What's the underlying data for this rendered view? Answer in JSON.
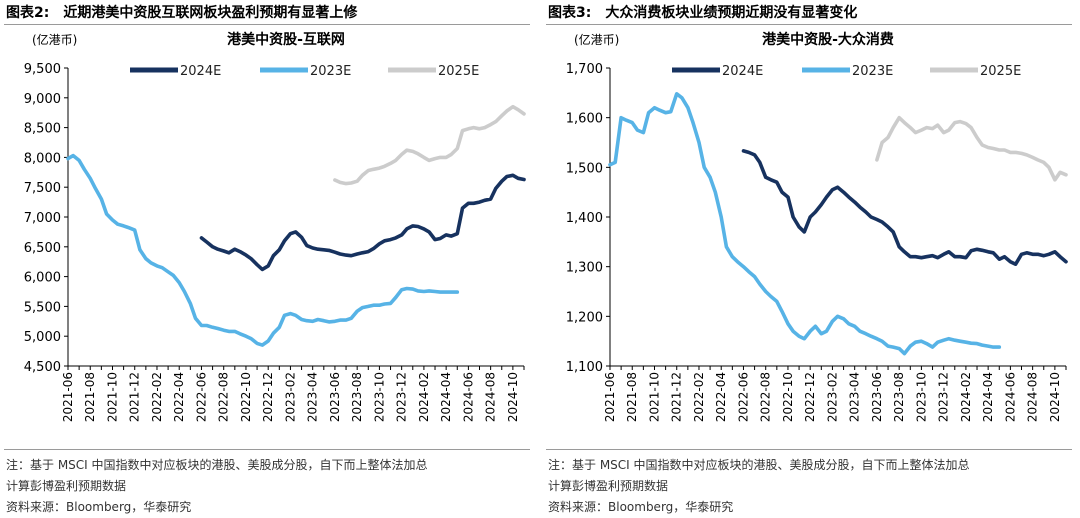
{
  "panels": [
    {
      "figure_title": "图表2:",
      "figure_subtitle": "近期港美中资股互联网板块盈利预期有显著上修",
      "note_line1": "注：基于 MSCI 中国指数中对应板块的港股、美股成分股，自下而上整体法加总",
      "note_line2": "计算彭博盈利预期数据",
      "source": "资料来源：Bloomberg，华泰研究"
    },
    {
      "figure_title": "图表3:",
      "figure_subtitle": "大众消费板块业绩预期近期没有显著变化",
      "note_line1": "注：基于 MSCI 中国指数中对应板块的港股、美股成分股，自下而上整体法加总",
      "note_line2": "计算彭博盈利预期数据",
      "source": "资料来源：Bloomberg，华泰研究"
    }
  ],
  "chart_data": [
    {
      "type": "line",
      "title": "港美中资股-互联网",
      "ylabel": "(亿港币)",
      "ylim": [
        4500,
        9500
      ],
      "yticks": [
        4500,
        5000,
        5500,
        6000,
        6500,
        7000,
        7500,
        8000,
        8500,
        9000,
        9500
      ],
      "xlim": [
        "2021-06",
        "2024-11"
      ],
      "xticks": [
        "2021-06",
        "2021-08",
        "2021-10",
        "2021-12",
        "2022-02",
        "2022-04",
        "2022-06",
        "2022-08",
        "2022-10",
        "2022-12",
        "2023-02",
        "2023-04",
        "2023-06",
        "2023-08",
        "2023-10",
        "2023-12",
        "2024-02",
        "2024-04",
        "2024-06",
        "2024-08",
        "2024-10"
      ],
      "grid": false,
      "legend_position": "top",
      "series": [
        {
          "name": "2024E",
          "color": "#17325f",
          "x": [
            "2022-06-01",
            "2022-06-15",
            "2022-07-01",
            "2022-07-15",
            "2022-08-01",
            "2022-08-15",
            "2022-09-01",
            "2022-09-15",
            "2022-10-01",
            "2022-10-15",
            "2022-11-01",
            "2022-11-15",
            "2022-12-01",
            "2022-12-15",
            "2023-01-01",
            "2023-01-15",
            "2023-02-01",
            "2023-02-15",
            "2023-03-01",
            "2023-03-15",
            "2023-04-01",
            "2023-04-15",
            "2023-05-01",
            "2023-05-15",
            "2023-06-01",
            "2023-06-15",
            "2023-07-01",
            "2023-07-15",
            "2023-08-01",
            "2023-08-15",
            "2023-09-01",
            "2023-09-15",
            "2023-10-01",
            "2023-10-15",
            "2023-11-01",
            "2023-11-15",
            "2023-12-01",
            "2023-12-15",
            "2024-01-01",
            "2024-01-15",
            "2024-02-01",
            "2024-02-15",
            "2024-03-01",
            "2024-03-15",
            "2024-04-01",
            "2024-04-15",
            "2024-05-01",
            "2024-05-15",
            "2024-06-01",
            "2024-06-15",
            "2024-07-01",
            "2024-07-15",
            "2024-08-01",
            "2024-08-15",
            "2024-09-01",
            "2024-09-15",
            "2024-10-01",
            "2024-10-15",
            "2024-11-01"
          ],
          "values": [
            6650,
            6580,
            6500,
            6460,
            6430,
            6400,
            6460,
            6420,
            6360,
            6300,
            6200,
            6120,
            6180,
            6350,
            6450,
            6600,
            6720,
            6750,
            6660,
            6520,
            6480,
            6460,
            6450,
            6440,
            6410,
            6380,
            6360,
            6350,
            6380,
            6400,
            6420,
            6470,
            6550,
            6600,
            6620,
            6650,
            6700,
            6800,
            6850,
            6840,
            6800,
            6750,
            6620,
            6640,
            6700,
            6680,
            6720,
            7150,
            7230,
            7230,
            7250,
            7280,
            7300,
            7480,
            7600,
            7680,
            7700,
            7650,
            7630
          ]
        },
        {
          "name": "2023E",
          "color": "#57b3e6",
          "x": [
            "2021-06-01",
            "2021-06-15",
            "2021-07-01",
            "2021-07-15",
            "2021-08-01",
            "2021-08-15",
            "2021-09-01",
            "2021-09-15",
            "2021-10-01",
            "2021-10-15",
            "2021-11-01",
            "2021-11-15",
            "2021-12-01",
            "2021-12-15",
            "2022-01-01",
            "2022-01-15",
            "2022-02-01",
            "2022-02-15",
            "2022-03-01",
            "2022-03-15",
            "2022-04-01",
            "2022-04-15",
            "2022-05-01",
            "2022-05-15",
            "2022-06-01",
            "2022-06-15",
            "2022-07-01",
            "2022-07-15",
            "2022-08-01",
            "2022-08-15",
            "2022-09-01",
            "2022-09-15",
            "2022-10-01",
            "2022-10-15",
            "2022-11-01",
            "2022-11-15",
            "2022-12-01",
            "2022-12-15",
            "2023-01-01",
            "2023-01-15",
            "2023-02-01",
            "2023-02-15",
            "2023-03-01",
            "2023-03-15",
            "2023-04-01",
            "2023-04-15",
            "2023-05-01",
            "2023-05-15",
            "2023-06-01",
            "2023-06-15",
            "2023-07-01",
            "2023-07-15",
            "2023-08-01",
            "2023-08-15",
            "2023-09-01",
            "2023-09-15",
            "2023-10-01",
            "2023-10-15",
            "2023-11-01",
            "2023-11-15",
            "2023-12-01",
            "2023-12-15",
            "2024-01-01",
            "2024-01-15",
            "2024-02-01",
            "2024-02-15",
            "2024-03-01",
            "2024-03-15",
            "2024-04-01",
            "2024-04-15",
            "2024-05-01"
          ],
          "values": [
            7980,
            8030,
            7950,
            7800,
            7650,
            7480,
            7300,
            7050,
            6950,
            6880,
            6850,
            6820,
            6780,
            6450,
            6300,
            6230,
            6180,
            6150,
            6080,
            6020,
            5900,
            5750,
            5550,
            5300,
            5180,
            5180,
            5150,
            5130,
            5100,
            5080,
            5080,
            5040,
            5000,
            4960,
            4880,
            4850,
            4920,
            5050,
            5150,
            5350,
            5380,
            5350,
            5280,
            5260,
            5250,
            5280,
            5260,
            5240,
            5250,
            5270,
            5270,
            5300,
            5420,
            5480,
            5500,
            5520,
            5520,
            5540,
            5550,
            5650,
            5780,
            5800,
            5790,
            5760,
            5750,
            5760,
            5750,
            5740,
            5740,
            5740,
            5740
          ]
        },
        {
          "name": "2025E",
          "color": "#cccccc",
          "x": [
            "2023-06-01",
            "2023-06-15",
            "2023-07-01",
            "2023-07-15",
            "2023-08-01",
            "2023-08-15",
            "2023-09-01",
            "2023-09-15",
            "2023-10-01",
            "2023-10-15",
            "2023-11-01",
            "2023-11-15",
            "2023-12-01",
            "2023-12-15",
            "2024-01-01",
            "2024-01-15",
            "2024-02-01",
            "2024-02-15",
            "2024-03-01",
            "2024-03-15",
            "2024-04-01",
            "2024-04-15",
            "2024-05-01",
            "2024-05-15",
            "2024-06-01",
            "2024-06-15",
            "2024-07-01",
            "2024-07-15",
            "2024-08-01",
            "2024-08-15",
            "2024-09-01",
            "2024-09-15",
            "2024-10-01",
            "2024-10-15",
            "2024-11-01"
          ],
          "values": [
            7620,
            7580,
            7560,
            7570,
            7600,
            7700,
            7780,
            7800,
            7820,
            7850,
            7900,
            7950,
            8050,
            8120,
            8100,
            8060,
            8000,
            7950,
            7980,
            8000,
            8000,
            8050,
            8150,
            8450,
            8480,
            8500,
            8480,
            8500,
            8550,
            8600,
            8700,
            8780,
            8850,
            8800,
            8730
          ]
        }
      ]
    },
    {
      "type": "line",
      "title": "港美中资股-大众消费",
      "ylabel": "(亿港币)",
      "ylim": [
        1100,
        1700
      ],
      "yticks": [
        1100,
        1200,
        1300,
        1400,
        1500,
        1600,
        1700
      ],
      "xlim": [
        "2021-06",
        "2024-11"
      ],
      "xticks": [
        "2021-06",
        "2021-08",
        "2021-10",
        "2021-12",
        "2022-02",
        "2022-04",
        "2022-06",
        "2022-08",
        "2022-10",
        "2022-12",
        "2023-02",
        "2023-04",
        "2023-06",
        "2023-08",
        "2023-10",
        "2023-12",
        "2024-02",
        "2024-04",
        "2024-06",
        "2024-08",
        "2024-10"
      ],
      "grid": false,
      "legend_position": "top",
      "series": [
        {
          "name": "2024E",
          "color": "#17325f",
          "x": [
            "2022-06-01",
            "2022-06-15",
            "2022-07-01",
            "2022-07-15",
            "2022-08-01",
            "2022-08-15",
            "2022-09-01",
            "2022-09-15",
            "2022-10-01",
            "2022-10-15",
            "2022-11-01",
            "2022-11-15",
            "2022-12-01",
            "2022-12-15",
            "2023-01-01",
            "2023-01-15",
            "2023-02-01",
            "2023-02-15",
            "2023-03-01",
            "2023-03-15",
            "2023-04-01",
            "2023-04-15",
            "2023-05-01",
            "2023-05-15",
            "2023-06-01",
            "2023-06-15",
            "2023-07-01",
            "2023-07-15",
            "2023-08-01",
            "2023-08-15",
            "2023-09-01",
            "2023-09-15",
            "2023-10-01",
            "2023-10-15",
            "2023-11-01",
            "2023-11-15",
            "2023-12-01",
            "2023-12-15",
            "2024-01-01",
            "2024-01-15",
            "2024-02-01",
            "2024-02-15",
            "2024-03-01",
            "2024-03-15",
            "2024-04-01",
            "2024-04-15",
            "2024-05-01",
            "2024-05-15",
            "2024-06-01",
            "2024-06-15",
            "2024-07-01",
            "2024-07-15",
            "2024-08-01",
            "2024-08-15",
            "2024-09-01",
            "2024-09-15",
            "2024-10-01",
            "2024-10-15",
            "2024-11-01"
          ],
          "values": [
            1533,
            1530,
            1525,
            1510,
            1480,
            1475,
            1470,
            1450,
            1440,
            1400,
            1380,
            1370,
            1400,
            1410,
            1425,
            1440,
            1455,
            1460,
            1450,
            1440,
            1430,
            1420,
            1410,
            1400,
            1395,
            1390,
            1380,
            1370,
            1340,
            1330,
            1320,
            1320,
            1318,
            1320,
            1322,
            1318,
            1325,
            1330,
            1320,
            1320,
            1318,
            1332,
            1335,
            1333,
            1330,
            1328,
            1315,
            1320,
            1310,
            1305,
            1325,
            1328,
            1325,
            1325,
            1322,
            1325,
            1330,
            1320,
            1310
          ]
        },
        {
          "name": "2023E",
          "color": "#57b3e6",
          "x": [
            "2021-06-01",
            "2021-06-15",
            "2021-07-01",
            "2021-07-15",
            "2021-08-01",
            "2021-08-15",
            "2021-09-01",
            "2021-09-15",
            "2021-10-01",
            "2021-10-15",
            "2021-11-01",
            "2021-11-15",
            "2021-12-01",
            "2021-12-15",
            "2022-01-01",
            "2022-01-15",
            "2022-02-01",
            "2022-02-15",
            "2022-03-01",
            "2022-03-15",
            "2022-04-01",
            "2022-04-15",
            "2022-05-01",
            "2022-05-15",
            "2022-06-01",
            "2022-06-15",
            "2022-07-01",
            "2022-07-15",
            "2022-08-01",
            "2022-08-15",
            "2022-09-01",
            "2022-09-15",
            "2022-10-01",
            "2022-10-15",
            "2022-11-01",
            "2022-11-15",
            "2022-12-01",
            "2022-12-15",
            "2023-01-01",
            "2023-01-15",
            "2023-02-01",
            "2023-02-15",
            "2023-03-01",
            "2023-03-15",
            "2023-04-01",
            "2023-04-15",
            "2023-05-01",
            "2023-05-15",
            "2023-06-01",
            "2023-06-15",
            "2023-07-01",
            "2023-07-15",
            "2023-08-01",
            "2023-08-15",
            "2023-09-01",
            "2023-09-15",
            "2023-10-01",
            "2023-10-15",
            "2023-11-01",
            "2023-11-15",
            "2023-12-01",
            "2023-12-15",
            "2024-01-01",
            "2024-01-15",
            "2024-02-01",
            "2024-02-15",
            "2024-03-01",
            "2024-03-15",
            "2024-04-01",
            "2024-04-15",
            "2024-05-01"
          ],
          "values": [
            1505,
            1510,
            1600,
            1595,
            1590,
            1575,
            1570,
            1610,
            1620,
            1615,
            1610,
            1612,
            1648,
            1640,
            1620,
            1590,
            1550,
            1500,
            1480,
            1450,
            1400,
            1340,
            1320,
            1310,
            1300,
            1290,
            1280,
            1265,
            1250,
            1240,
            1230,
            1210,
            1185,
            1170,
            1160,
            1155,
            1170,
            1180,
            1165,
            1170,
            1190,
            1200,
            1195,
            1185,
            1180,
            1170,
            1165,
            1160,
            1155,
            1150,
            1140,
            1138,
            1135,
            1125,
            1140,
            1148,
            1150,
            1145,
            1138,
            1148,
            1152,
            1155,
            1152,
            1150,
            1148,
            1146,
            1145,
            1142,
            1140,
            1138,
            1138
          ]
        },
        {
          "name": "2025E",
          "color": "#cccccc",
          "x": [
            "2023-06-01",
            "2023-06-15",
            "2023-07-01",
            "2023-07-15",
            "2023-08-01",
            "2023-08-15",
            "2023-09-01",
            "2023-09-15",
            "2023-10-01",
            "2023-10-15",
            "2023-11-01",
            "2023-11-15",
            "2023-12-01",
            "2023-12-15",
            "2024-01-01",
            "2024-01-15",
            "2024-02-01",
            "2024-02-15",
            "2024-03-01",
            "2024-03-15",
            "2024-04-01",
            "2024-04-15",
            "2024-05-01",
            "2024-05-15",
            "2024-06-01",
            "2024-06-15",
            "2024-07-01",
            "2024-07-15",
            "2024-08-01",
            "2024-08-15",
            "2024-09-01",
            "2024-09-15",
            "2024-10-01",
            "2024-10-15",
            "2024-11-01"
          ],
          "values": [
            1515,
            1550,
            1560,
            1580,
            1600,
            1590,
            1580,
            1570,
            1575,
            1580,
            1578,
            1585,
            1570,
            1575,
            1590,
            1592,
            1588,
            1580,
            1560,
            1545,
            1540,
            1538,
            1535,
            1535,
            1530,
            1530,
            1528,
            1525,
            1520,
            1515,
            1510,
            1500,
            1475,
            1490,
            1485
          ]
        }
      ]
    }
  ]
}
